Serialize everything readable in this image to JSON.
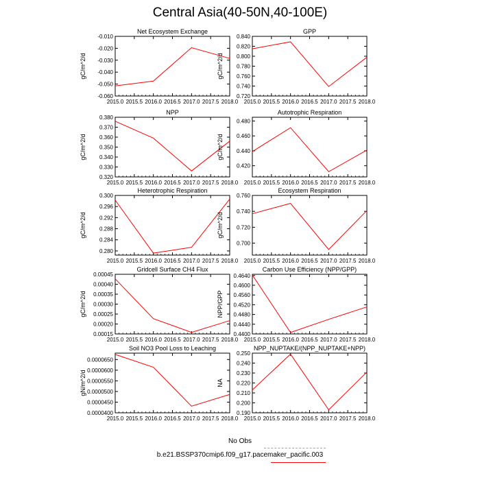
{
  "title": "Central Asia(40-50N,40-100E)",
  "legend": {
    "entries": [
      {
        "label": "No Obs",
        "color": "#9999ee",
        "dashed": true
      },
      {
        "label": "b.e21.BSSP370cmip6.f09_g17.pacemaker_pacific.003",
        "color": "#ff0000",
        "dashed": false
      }
    ]
  },
  "chart_data": [
    {
      "type": "line",
      "title": "Net Ecosystem Exchange",
      "ylabel": "gC/m^2/d",
      "x": [
        2015,
        2016,
        2017,
        2018
      ],
      "series": [
        {
          "values": [
            -0.0515,
            -0.0475,
            -0.0195,
            -0.0285
          ],
          "color": "#ff0000"
        }
      ],
      "xlim": [
        2015,
        2018
      ],
      "ylim": [
        -0.06,
        -0.01
      ],
      "xticks": [
        "2015.0",
        "2015.5",
        "2016.0",
        "2016.5",
        "2017.0",
        "2017.5",
        "2018.0"
      ],
      "yticks": [
        -0.06,
        -0.05,
        -0.04,
        -0.03,
        -0.02,
        -0.01
      ],
      "ytick_labels": [
        "-0.060",
        "-0.050",
        "-0.040",
        "-0.030",
        "-0.020",
        "-0.010"
      ]
    },
    {
      "type": "line",
      "title": "GPP",
      "ylabel": "gC/m^2/d",
      "x": [
        2015,
        2016,
        2017,
        2018
      ],
      "series": [
        {
          "values": [
            0.815,
            0.829,
            0.739,
            0.798
          ],
          "color": "#ff0000"
        }
      ],
      "xlim": [
        2015,
        2018
      ],
      "ylim": [
        0.72,
        0.84
      ],
      "xticks": [
        "2015.0",
        "2015.5",
        "2016.0",
        "2016.5",
        "2017.0",
        "2017.5",
        "2018.0"
      ],
      "yticks": [
        0.72,
        0.74,
        0.76,
        0.78,
        0.8,
        0.82,
        0.84
      ],
      "ytick_labels": [
        "0.720",
        "0.740",
        "0.760",
        "0.780",
        "0.800",
        "0.820",
        "0.840"
      ]
    },
    {
      "type": "line",
      "title": "NPP",
      "ylabel": "gC/m^2/d",
      "x": [
        2015,
        2016,
        2017,
        2018
      ],
      "series": [
        {
          "values": [
            0.376,
            0.359,
            0.326,
            0.356
          ],
          "color": "#ff0000"
        }
      ],
      "xlim": [
        2015,
        2018
      ],
      "ylim": [
        0.32,
        0.38
      ],
      "xticks": [
        "2015.0",
        "2015.5",
        "2016.0",
        "2016.5",
        "2017.0",
        "2017.5",
        "2018.0"
      ],
      "yticks": [
        0.32,
        0.33,
        0.34,
        0.35,
        0.36,
        0.37,
        0.38
      ],
      "ytick_labels": [
        "0.320",
        "0.330",
        "0.340",
        "0.350",
        "0.360",
        "0.370",
        "0.380"
      ]
    },
    {
      "type": "line",
      "title": "Autotrophic Respiration",
      "ylabel": "gC/m^2/d",
      "x": [
        2015,
        2016,
        2017,
        2018
      ],
      "series": [
        {
          "values": [
            0.439,
            0.471,
            0.412,
            0.441
          ],
          "color": "#ff0000"
        }
      ],
      "xlim": [
        2015,
        2018
      ],
      "ylim": [
        0.405,
        0.485
      ],
      "xticks": [
        "2015.0",
        "2015.5",
        "2016.0",
        "2016.5",
        "2017.0",
        "2017.5",
        "2018.0"
      ],
      "yticks": [
        0.42,
        0.44,
        0.46,
        0.48
      ],
      "ytick_labels": [
        "0.420",
        "0.440",
        "0.460",
        "0.480"
      ]
    },
    {
      "type": "line",
      "title": "Heterotrophic Respiration",
      "ylabel": "gC/m^2/d",
      "x": [
        2015,
        2016,
        2017,
        2018
      ],
      "series": [
        {
          "values": [
            0.2983,
            0.2792,
            0.2813,
            0.2987
          ],
          "color": "#ff0000"
        }
      ],
      "xlim": [
        2015,
        2018
      ],
      "ylim": [
        0.2785,
        0.3
      ],
      "xticks": [
        "2015.0",
        "2015.5",
        "2016.0",
        "2016.5",
        "2017.0",
        "2017.5",
        "2018.0"
      ],
      "yticks": [
        0.28,
        0.284,
        0.288,
        0.292,
        0.296,
        0.3
      ],
      "ytick_labels": [
        "0.280",
        "0.284",
        "0.288",
        "0.292",
        "0.296",
        "0.300"
      ]
    },
    {
      "type": "line",
      "title": "Ecosystem Respiration",
      "ylabel": "gC/m^2/d",
      "x": [
        2015,
        2016,
        2017,
        2018
      ],
      "series": [
        {
          "values": [
            0.737,
            0.75,
            0.692,
            0.741
          ],
          "color": "#ff0000"
        }
      ],
      "xlim": [
        2015,
        2018
      ],
      "ylim": [
        0.685,
        0.76
      ],
      "xticks": [
        "2015.0",
        "2015.5",
        "2016.0",
        "2016.5",
        "2017.0",
        "2017.5",
        "2018.0"
      ],
      "yticks": [
        0.7,
        0.72,
        0.74,
        0.76
      ],
      "ytick_labels": [
        "0.700",
        "0.720",
        "0.740",
        "0.760"
      ]
    },
    {
      "type": "line",
      "title": "Gridcell Surface CH4 Flux",
      "ylabel": "gC/m^2/d",
      "x": [
        2015,
        2016,
        2017,
        2018
      ],
      "series": [
        {
          "values": [
            0.000427,
            0.000227,
            0.000158,
            0.000217
          ],
          "color": "#ff0000"
        }
      ],
      "xlim": [
        2015,
        2018
      ],
      "ylim": [
        0.00015,
        0.00045
      ],
      "xticks": [
        "2015.0",
        "2015.5",
        "2016.0",
        "2016.5",
        "2017.0",
        "2017.5",
        "2018.0"
      ],
      "yticks": [
        0.00015,
        0.0002,
        0.00025,
        0.0003,
        0.00035,
        0.0004,
        0.00045
      ],
      "ytick_labels": [
        "0.00015",
        "0.00020",
        "0.00025",
        "0.00030",
        "0.00035",
        "0.00040",
        "0.00045"
      ]
    },
    {
      "type": "line",
      "title": "Carbon Use Efficiency (NPP/GPP)",
      "ylabel": "NPP/GPP",
      "x": [
        2015,
        2016,
        2017,
        2018
      ],
      "series": [
        {
          "values": [
            0.4642,
            0.4406,
            0.446,
            0.4511
          ],
          "color": "#ff0000"
        }
      ],
      "xlim": [
        2015,
        2018
      ],
      "ylim": [
        0.44,
        0.4645
      ],
      "xticks": [
        "2015.0",
        "2015.5",
        "2016.0",
        "2016.5",
        "2017.0",
        "2017.5",
        "2018.0"
      ],
      "yticks": [
        0.44,
        0.444,
        0.448,
        0.452,
        0.456,
        0.46,
        0.464
      ],
      "ytick_labels": [
        "0.4400",
        "0.4440",
        "0.4480",
        "0.4520",
        "0.4560",
        "0.4600",
        "0.4640"
      ]
    },
    {
      "type": "line",
      "title": "Soil NO3 Pool Loss to Leaching",
      "ylabel": "gN/m^2/d",
      "x": [
        2015,
        2016,
        2017,
        2018
      ],
      "series": [
        {
          "values": [
            6.74e-05,
            6.14e-05,
            4.31e-05,
            4.86e-05
          ],
          "color": "#ff0000"
        }
      ],
      "xlim": [
        2015,
        2018
      ],
      "ylim": [
        4e-05,
        6.8e-05
      ],
      "xticks": [
        "2015.0",
        "2015.5",
        "2016.0",
        "2016.5",
        "2017.0",
        "2017.5",
        "2018.0"
      ],
      "yticks": [
        4e-05,
        4.5e-05,
        5e-05,
        5.5e-05,
        6e-05,
        6.5e-05
      ],
      "ytick_labels": [
        "0.0000400",
        "0.0000450",
        "0.0000500",
        "0.0000550",
        "0.0000600",
        "0.0000650"
      ]
    },
    {
      "type": "line",
      "title": "NPP_NUPTAKE/(NPP_NUPTAKE+NPP)",
      "ylabel": "NA",
      "x": [
        2015,
        2016,
        2017,
        2018
      ],
      "series": [
        {
          "values": [
            0.213,
            0.249,
            0.193,
            0.231
          ],
          "color": "#ff0000"
        }
      ],
      "xlim": [
        2015,
        2018
      ],
      "ylim": [
        0.19,
        0.25
      ],
      "xticks": [
        "2015.0",
        "2015.5",
        "2016.0",
        "2016.5",
        "2017.0",
        "2017.5",
        "2018.0"
      ],
      "yticks": [
        0.19,
        0.2,
        0.21,
        0.22,
        0.23,
        0.24,
        0.25
      ],
      "ytick_labels": [
        "0.190",
        "0.200",
        "0.210",
        "0.220",
        "0.230",
        "0.240",
        "0.250"
      ]
    }
  ]
}
